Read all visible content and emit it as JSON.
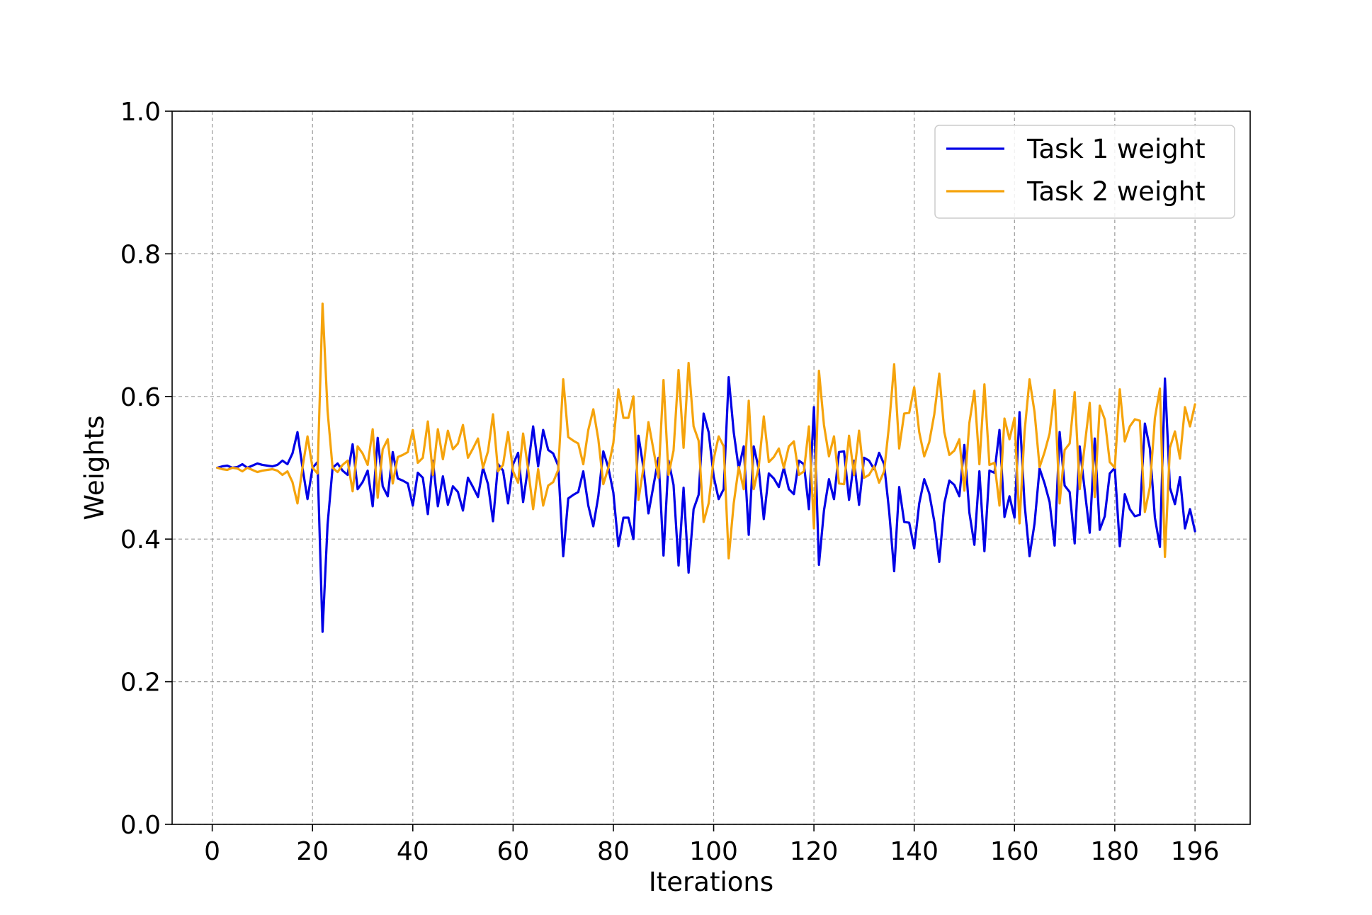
{
  "chart_data": {
    "type": "line",
    "title": "",
    "xlabel": "Iterations",
    "ylabel": "Weights",
    "xlim": [
      -8,
      207
    ],
    "ylim": [
      0.0,
      1.0
    ],
    "x_ticks": [
      0,
      20,
      40,
      60,
      80,
      100,
      120,
      140,
      160,
      180,
      196
    ],
    "x_tick_labels": [
      "0",
      "20",
      "40",
      "60",
      "80",
      "100",
      "120",
      "140",
      "160",
      "180",
      "196"
    ],
    "y_ticks": [
      0.0,
      0.2,
      0.4,
      0.6,
      0.8,
      1.0
    ],
    "y_tick_labels": [
      "0.0",
      "0.2",
      "0.4",
      "0.6",
      "0.8",
      "1.0"
    ],
    "grid": true,
    "legend_position": "top-right",
    "x": [
      1,
      2,
      3,
      4,
      5,
      6,
      7,
      8,
      9,
      10,
      11,
      12,
      13,
      14,
      15,
      16,
      17,
      18,
      19,
      20,
      21,
      22,
      23,
      24,
      25,
      26,
      27,
      28,
      29,
      30,
      31,
      32,
      33,
      34,
      35,
      36,
      37,
      38,
      39,
      40,
      41,
      42,
      43,
      44,
      45,
      46,
      47,
      48,
      49,
      50,
      51,
      52,
      53,
      54,
      55,
      56,
      57,
      58,
      59,
      60,
      61,
      62,
      63,
      64,
      65,
      66,
      67,
      68,
      69,
      70,
      71,
      72,
      73,
      74,
      75,
      76,
      77,
      78,
      79,
      80,
      81,
      82,
      83,
      84,
      85,
      86,
      87,
      88,
      89,
      90,
      91,
      92,
      93,
      94,
      95,
      96,
      97,
      98,
      99,
      100,
      101,
      102,
      103,
      104,
      105,
      106,
      107,
      108,
      109,
      110,
      111,
      112,
      113,
      114,
      115,
      116,
      117,
      118,
      119,
      120,
      121,
      122,
      123,
      124,
      125,
      126,
      127,
      128,
      129,
      130,
      131,
      132,
      133,
      134,
      135,
      136,
      137,
      138,
      139,
      140,
      141,
      142,
      143,
      144,
      145,
      146,
      147,
      148,
      149,
      150,
      151,
      152,
      153,
      154,
      155,
      156,
      157,
      158,
      159,
      160,
      161,
      162,
      163,
      164,
      165,
      166,
      167,
      168,
      169,
      170,
      171,
      172,
      173,
      174,
      175,
      176,
      177,
      178,
      179,
      180,
      181,
      182,
      183,
      184,
      185,
      186,
      187,
      188,
      189,
      190,
      191,
      192,
      193,
      194,
      195,
      196
    ],
    "series": [
      {
        "name": "Task 1 weight",
        "color": "#0000e6",
        "values": [
          0.5,
          0.502,
          0.503,
          0.5,
          0.501,
          0.505,
          0.5,
          0.503,
          0.506,
          0.504,
          0.503,
          0.502,
          0.504,
          0.51,
          0.505,
          0.52,
          0.55,
          0.5,
          0.456,
          0.5,
          0.508,
          0.27,
          0.42,
          0.5,
          0.506,
          0.496,
          0.49,
          0.533,
          0.47,
          0.48,
          0.496,
          0.446,
          0.542,
          0.474,
          0.46,
          0.522,
          0.485,
          0.482,
          0.478,
          0.447,
          0.493,
          0.486,
          0.435,
          0.51,
          0.446,
          0.488,
          0.448,
          0.474,
          0.466,
          0.44,
          0.486,
          0.473,
          0.459,
          0.5,
          0.477,
          0.425,
          0.505,
          0.496,
          0.45,
          0.505,
          0.521,
          0.452,
          0.502,
          0.558,
          0.502,
          0.553,
          0.525,
          0.52,
          0.503,
          0.376,
          0.457,
          0.462,
          0.466,
          0.495,
          0.447,
          0.418,
          0.46,
          0.523,
          0.5,
          0.465,
          0.39,
          0.43,
          0.43,
          0.4,
          0.545,
          0.5,
          0.436,
          0.475,
          0.514,
          0.377,
          0.51,
          0.476,
          0.363,
          0.472,
          0.353,
          0.442,
          0.462,
          0.576,
          0.55,
          0.488,
          0.456,
          0.47,
          0.627,
          0.55,
          0.499,
          0.53,
          0.406,
          0.53,
          0.498,
          0.428,
          0.492,
          0.485,
          0.473,
          0.5,
          0.47,
          0.463,
          0.51,
          0.505,
          0.442,
          0.585,
          0.364,
          0.44,
          0.484,
          0.456,
          0.522,
          0.523,
          0.455,
          0.51,
          0.448,
          0.514,
          0.51,
          0.498,
          0.521,
          0.505,
          0.439,
          0.355,
          0.473,
          0.424,
          0.423,
          0.387,
          0.45,
          0.484,
          0.464,
          0.425,
          0.368,
          0.45,
          0.482,
          0.476,
          0.46,
          0.532,
          0.437,
          0.392,
          0.495,
          0.383,
          0.496,
          0.493,
          0.553,
          0.431,
          0.46,
          0.43,
          0.578,
          0.45,
          0.376,
          0.422,
          0.499,
          0.478,
          0.452,
          0.391,
          0.55,
          0.475,
          0.466,
          0.394,
          0.53,
          0.469,
          0.409,
          0.541,
          0.413,
          0.432,
          0.492,
          0.5,
          0.39,
          0.463,
          0.442,
          0.432,
          0.434,
          0.562,
          0.527,
          0.43,
          0.389,
          0.625,
          0.472,
          0.449,
          0.487,
          0.415,
          0.442,
          0.411
        ]
      },
      {
        "name": "Task 2 weight",
        "color": "#f5a30b",
        "values": [
          0.5,
          0.498,
          0.497,
          0.5,
          0.499,
          0.495,
          0.5,
          0.497,
          0.494,
          0.496,
          0.497,
          0.498,
          0.496,
          0.49,
          0.495,
          0.48,
          0.45,
          0.5,
          0.544,
          0.5,
          0.492,
          0.73,
          0.58,
          0.5,
          0.494,
          0.504,
          0.51,
          0.467,
          0.53,
          0.52,
          0.504,
          0.554,
          0.458,
          0.526,
          0.54,
          0.478,
          0.515,
          0.518,
          0.522,
          0.553,
          0.507,
          0.514,
          0.565,
          0.49,
          0.554,
          0.512,
          0.552,
          0.526,
          0.534,
          0.56,
          0.514,
          0.527,
          0.541,
          0.5,
          0.523,
          0.575,
          0.495,
          0.504,
          0.55,
          0.495,
          0.479,
          0.548,
          0.498,
          0.442,
          0.498,
          0.447,
          0.475,
          0.48,
          0.497,
          0.624,
          0.543,
          0.538,
          0.534,
          0.505,
          0.553,
          0.582,
          0.54,
          0.477,
          0.5,
          0.535,
          0.61,
          0.57,
          0.57,
          0.6,
          0.455,
          0.5,
          0.564,
          0.525,
          0.486,
          0.623,
          0.49,
          0.524,
          0.637,
          0.528,
          0.647,
          0.558,
          0.538,
          0.424,
          0.45,
          0.512,
          0.544,
          0.53,
          0.373,
          0.45,
          0.501,
          0.47,
          0.594,
          0.47,
          0.502,
          0.572,
          0.508,
          0.515,
          0.527,
          0.5,
          0.53,
          0.537,
          0.49,
          0.495,
          0.558,
          0.415,
          0.636,
          0.56,
          0.516,
          0.544,
          0.478,
          0.477,
          0.545,
          0.49,
          0.552,
          0.486,
          0.49,
          0.502,
          0.479,
          0.495,
          0.561,
          0.645,
          0.527,
          0.576,
          0.577,
          0.613,
          0.55,
          0.516,
          0.536,
          0.575,
          0.632,
          0.55,
          0.518,
          0.524,
          0.54,
          0.468,
          0.563,
          0.608,
          0.505,
          0.617,
          0.504,
          0.507,
          0.447,
          0.569,
          0.54,
          0.57,
          0.422,
          0.55,
          0.624,
          0.578,
          0.501,
          0.522,
          0.548,
          0.609,
          0.45,
          0.525,
          0.534,
          0.606,
          0.47,
          0.531,
          0.591,
          0.459,
          0.587,
          0.568,
          0.508,
          0.5,
          0.61,
          0.537,
          0.558,
          0.568,
          0.566,
          0.438,
          0.473,
          0.57,
          0.611,
          0.375,
          0.528,
          0.551,
          0.513,
          0.585,
          0.558,
          0.589
        ]
      }
    ]
  }
}
